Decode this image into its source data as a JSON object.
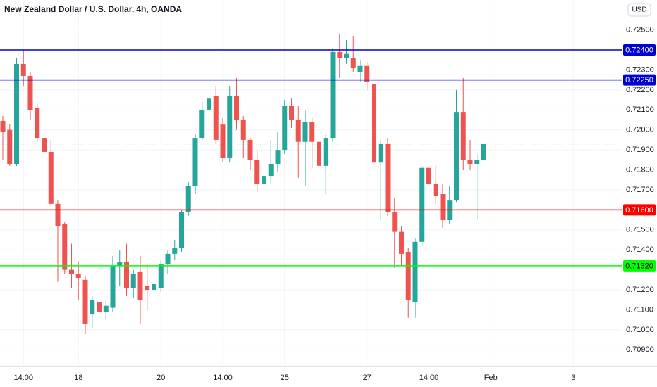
{
  "chart_data": {
    "type": "candlestick",
    "title": "New Zealand Dollar / U.S. Dollar, 4h, OANDA",
    "currency": "USD",
    "up_color": "#26a69a",
    "down_color": "#ef5350",
    "grid": true,
    "ylim": [
      0.7082,
      0.7265
    ],
    "yticks": [
      {
        "value": 0.709,
        "label": "0.70900"
      },
      {
        "value": 0.71,
        "label": "0.71000"
      },
      {
        "value": 0.711,
        "label": "0.71100"
      },
      {
        "value": 0.712,
        "label": "0.71200"
      },
      {
        "value": 0.714,
        "label": "0.71400"
      },
      {
        "value": 0.715,
        "label": "0.71500"
      },
      {
        "value": 0.717,
        "label": "0.71700"
      },
      {
        "value": 0.718,
        "label": "0.71800"
      },
      {
        "value": 0.719,
        "label": "0.71900"
      },
      {
        "value": 0.72,
        "label": "0.72000"
      },
      {
        "value": 0.721,
        "label": "0.72100"
      },
      {
        "value": 0.722,
        "label": "0.72200"
      },
      {
        "value": 0.723,
        "label": "0.72300"
      },
      {
        "value": 0.725,
        "label": "0.72500"
      }
    ],
    "lines": [
      {
        "value": 0.724,
        "label": "0.72400",
        "color": "#0000d0",
        "text_color": "#ffffff"
      },
      {
        "value": 0.7225,
        "label": "0.72250",
        "color": "#0000d0",
        "text_color": "#ffffff"
      },
      {
        "value": 0.716,
        "label": "0.71600",
        "color": "#ff0000",
        "text_color": "#ffffff"
      },
      {
        "value": 0.7132,
        "label": "0.71320",
        "color": "#00ff00",
        "text_color": "#000000"
      }
    ],
    "categories": [
      null,
      null,
      null,
      "14:00",
      null,
      null,
      null,
      null,
      null,
      null,
      null,
      "18",
      null,
      null,
      null,
      null,
      null,
      null,
      null,
      null,
      null,
      null,
      null,
      "20",
      null,
      null,
      null,
      null,
      null,
      null,
      null,
      null,
      "14:00",
      null,
      null,
      null,
      null,
      null,
      null,
      null,
      null,
      "25",
      null,
      null,
      null,
      null,
      null,
      null,
      null,
      null,
      null,
      null,
      null,
      "27",
      null,
      null,
      null,
      null,
      null,
      null,
      null,
      null,
      "14:00",
      null,
      null,
      null,
      null,
      null,
      null,
      null,
      null,
      "Feb",
      null,
      null,
      null,
      null,
      null,
      null,
      null,
      null,
      null,
      null,
      null,
      "3",
      null,
      null,
      null,
      null,
      null,
      null
    ],
    "open": [
      0.72045,
      0.72,
      0.7183,
      0.7233,
      0.7227,
      0.7211,
      0.7196,
      0.7189,
      0.7163,
      0.7153,
      0.713,
      0.7128,
      0.7125,
      0.7108,
      0.7114,
      0.7109,
      0.7111,
      0.7132,
      0.7134,
      0.7121,
      0.7129,
      0.7122,
      0.712,
      0.7121,
      0.7133,
      0.7138,
      0.7141,
      0.7159,
      0.7172,
      0.7196,
      0.721,
      0.7217,
      0.7203,
      0.7186,
      0.7217,
      0.7205,
      0.7195,
      0.7185,
      0.7173,
      0.7177,
      0.7183,
      0.719,
      0.7212,
      0.7205,
      0.7194,
      0.7204,
      0.7194,
      0.7182,
      0.7196,
      0.7239,
      0.7236,
      0.7236,
      0.7229,
      0.7232,
      0.7223,
      0.7184,
      0.7193,
      0.7159,
      0.7149,
      0.7139,
      0.7114,
      0.7144,
      0.7181,
      0.7173,
      0.7168,
      0.7155,
      0.7165,
      0.7209,
      0.7185,
      0.7183,
      0.7185,
      null,
      null,
      null,
      null,
      null,
      null,
      null,
      null,
      null,
      null,
      null,
      null,
      null,
      null,
      null,
      null,
      null,
      null,
      null
    ],
    "high": [
      0.7207,
      0.7203,
      0.7236,
      0.724,
      0.7229,
      0.7213,
      0.7199,
      0.7195,
      0.7165,
      0.7154,
      0.7143,
      0.7134,
      0.7127,
      0.7117,
      0.7116,
      0.7115,
      0.7137,
      0.714,
      0.7143,
      0.713,
      0.7137,
      0.7132,
      0.7128,
      0.7135,
      0.714,
      0.7145,
      0.716,
      0.7174,
      0.7198,
      0.7214,
      0.7223,
      0.7222,
      0.7206,
      0.7222,
      0.7226,
      0.7207,
      0.7196,
      0.719,
      0.7184,
      0.7195,
      0.7199,
      0.7215,
      0.7216,
      0.7212,
      0.721,
      0.7206,
      0.7197,
      0.7198,
      0.7241,
      0.7248,
      0.7245,
      0.7247,
      0.7235,
      0.7234,
      0.7225,
      0.7195,
      0.7196,
      0.7166,
      0.7152,
      0.7141,
      0.7146,
      0.7182,
      0.7192,
      0.7182,
      0.7173,
      0.7172,
      0.722,
      0.7226,
      0.7195,
      0.7188,
      0.7197,
      null,
      null,
      null,
      null,
      null,
      null,
      null,
      null,
      null,
      null,
      null,
      null,
      null,
      null,
      null,
      null,
      null,
      null,
      null
    ],
    "low": [
      0.7185,
      0.7182,
      0.7182,
      0.7222,
      0.7205,
      0.7194,
      0.7183,
      0.7162,
      0.7124,
      0.7128,
      0.7121,
      0.7115,
      0.7098,
      0.7101,
      0.7105,
      0.7105,
      0.7109,
      0.7122,
      0.7117,
      0.7116,
      0.7103,
      0.711,
      0.7118,
      0.7119,
      0.7128,
      0.7135,
      0.7139,
      0.7157,
      0.7168,
      0.7195,
      0.7199,
      0.7193,
      0.7184,
      0.7184,
      0.72,
      0.7186,
      0.718,
      0.7169,
      0.7168,
      0.7173,
      0.7179,
      0.7188,
      0.7201,
      0.7176,
      0.7172,
      0.7181,
      0.7172,
      0.7168,
      0.7194,
      0.7226,
      0.7233,
      0.7229,
      0.7224,
      0.722,
      0.718,
      0.7155,
      0.7157,
      0.7131,
      0.7132,
      0.7106,
      0.7106,
      0.7142,
      0.7165,
      0.7163,
      0.7151,
      0.7153,
      0.7164,
      0.718,
      0.718,
      0.7155,
      0.7183,
      null,
      null,
      null,
      null,
      null,
      null,
      null,
      null,
      null,
      null,
      null,
      null,
      null,
      null,
      null,
      null,
      null,
      null,
      null
    ],
    "close": [
      0.7199,
      0.7183,
      0.7233,
      0.7227,
      0.721,
      0.7196,
      0.7189,
      0.7163,
      0.7152,
      0.713,
      0.7128,
      0.7126,
      0.7103,
      0.7115,
      0.7109,
      0.7112,
      0.7132,
      0.7134,
      0.7121,
      0.7128,
      0.7115,
      0.712,
      0.7123,
      0.7133,
      0.7138,
      0.7141,
      0.7159,
      0.7172,
      0.7196,
      0.721,
      0.7216,
      0.7195,
      0.7186,
      0.7217,
      0.7205,
      0.7195,
      0.7185,
      0.7173,
      0.7177,
      0.7183,
      0.719,
      0.7212,
      0.7205,
      0.7194,
      0.7204,
      0.7194,
      0.7182,
      0.7196,
      0.7239,
      0.7236,
      0.7238,
      0.7231,
      0.7232,
      0.7224,
      0.7184,
      0.7193,
      0.7159,
      0.7149,
      0.7138,
      0.7115,
      0.7144,
      0.7181,
      0.7173,
      0.7167,
      0.7155,
      0.7165,
      0.7209,
      0.7185,
      0.7183,
      0.7185,
      0.7193,
      null,
      null,
      null,
      null,
      null,
      null,
      null,
      null,
      null,
      null,
      null,
      null,
      null,
      null,
      null,
      null,
      null,
      null,
      null
    ]
  }
}
